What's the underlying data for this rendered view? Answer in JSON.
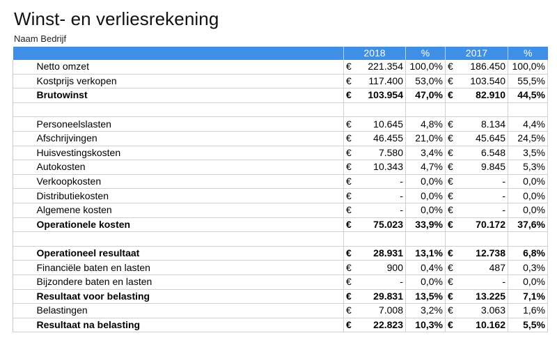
{
  "title": "Winst- en verliesrekening",
  "company": "Naam Bedrijf",
  "header": {
    "year1": "2018",
    "pct1": "%",
    "year2": "2017",
    "pct2": "%"
  },
  "rows": [
    {
      "label": "Netto omzet",
      "bold": false,
      "c1": "€",
      "v1": "221.354",
      "p1": "100,0%",
      "c2": "€",
      "v2": "186.450",
      "p2": "100,0%"
    },
    {
      "label": "Kostprijs verkopen",
      "bold": false,
      "c1": "€",
      "v1": "117.400",
      "p1": "53,0%",
      "c2": "€",
      "v2": "103.540",
      "p2": "55,5%"
    },
    {
      "label": "Brutowinst",
      "bold": true,
      "c1": "€",
      "v1": "103.954",
      "p1": "47,0%",
      "c2": "€",
      "v2": "82.910",
      "p2": "44,5%"
    },
    {
      "label": "",
      "bold": false,
      "c1": "",
      "v1": "",
      "p1": "",
      "c2": "",
      "v2": "",
      "p2": ""
    },
    {
      "label": "Personeelslasten",
      "bold": false,
      "c1": "€",
      "v1": "10.645",
      "p1": "4,8%",
      "c2": "€",
      "v2": "8.134",
      "p2": "4,4%"
    },
    {
      "label": "Afschrijvingen",
      "bold": false,
      "c1": "€",
      "v1": "46.455",
      "p1": "21,0%",
      "c2": "€",
      "v2": "45.645",
      "p2": "24,5%"
    },
    {
      "label": "Huisvestingskosten",
      "bold": false,
      "c1": "€",
      "v1": "7.580",
      "p1": "3,4%",
      "c2": "€",
      "v2": "6.548",
      "p2": "3,5%"
    },
    {
      "label": "Autokosten",
      "bold": false,
      "c1": "€",
      "v1": "10.343",
      "p1": "4,7%",
      "c2": "€",
      "v2": "9.845",
      "p2": "5,3%"
    },
    {
      "label": "Verkoopkosten",
      "bold": false,
      "c1": "€",
      "v1": "-",
      "p1": "0,0%",
      "c2": "€",
      "v2": "-",
      "p2": "0,0%"
    },
    {
      "label": "Distributiekosten",
      "bold": false,
      "c1": "€",
      "v1": "-",
      "p1": "0,0%",
      "c2": "€",
      "v2": "-",
      "p2": "0,0%"
    },
    {
      "label": "Algemene kosten",
      "bold": false,
      "c1": "€",
      "v1": "-",
      "p1": "0,0%",
      "c2": "€",
      "v2": "-",
      "p2": "0,0%"
    },
    {
      "label": "Operationele kosten",
      "bold": true,
      "c1": "€",
      "v1": "75.023",
      "p1": "33,9%",
      "c2": "€",
      "v2": "70.172",
      "p2": "37,6%"
    },
    {
      "label": "",
      "bold": false,
      "c1": "",
      "v1": "",
      "p1": "",
      "c2": "",
      "v2": "",
      "p2": ""
    },
    {
      "label": "Operationeel resultaat",
      "bold": true,
      "c1": "€",
      "v1": "28.931",
      "p1": "13,1%",
      "c2": "€",
      "v2": "12.738",
      "p2": "6,8%"
    },
    {
      "label": "Financiële baten en lasten",
      "bold": false,
      "c1": "€",
      "v1": "900",
      "p1": "0,4%",
      "c2": "€",
      "v2": "487",
      "p2": "0,3%"
    },
    {
      "label": "Bijzondere baten en lasten",
      "bold": false,
      "c1": "€",
      "v1": "-",
      "p1": "0,0%",
      "c2": "€",
      "v2": "-",
      "p2": "0,0%"
    },
    {
      "label": "Resultaat voor belasting",
      "bold": true,
      "c1": "€",
      "v1": "29.831",
      "p1": "13,5%",
      "c2": "€",
      "v2": "13.225",
      "p2": "7,1%"
    },
    {
      "label": "Belastingen",
      "bold": false,
      "c1": "€",
      "v1": "7.008",
      "p1": "3,2%",
      "c2": "€",
      "v2": "3.063",
      "p2": "1,6%"
    },
    {
      "label": "Resultaat na belasting",
      "bold": true,
      "c1": "€",
      "v1": "22.823",
      "p1": "10,3%",
      "c2": "€",
      "v2": "10.162",
      "p2": "5,5%"
    }
  ]
}
